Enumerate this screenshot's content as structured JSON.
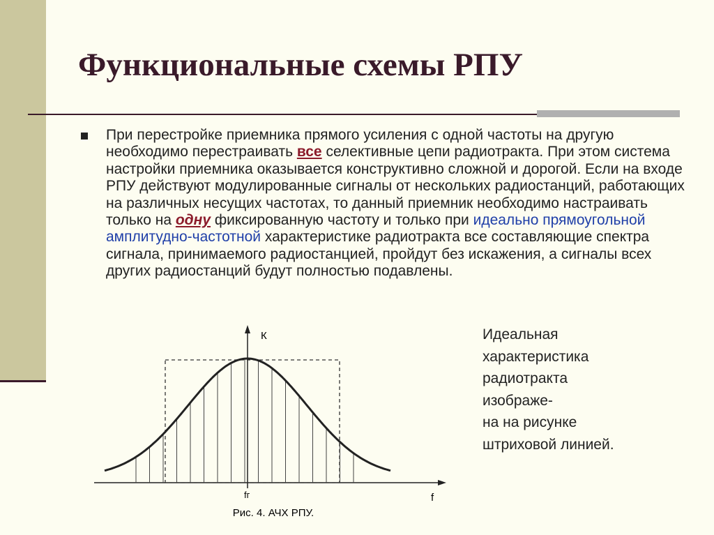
{
  "title": "Функциональные схемы РПУ",
  "bullet": {
    "parts": [
      "При перестройке приемника прямого усиления с одной частоты на другую необходимо перестраивать ",
      "все",
      " селективные цепи радиотракта. При этом система настройки приемника оказывается конструктивно сложной и дорогой. Если на входе РПУ действуют модулированные сигналы от нескольких радиостанций, работающих на различных несущих частотах, то данный приемник необходимо настраивать только на ",
      "одну",
      " фиксированную частоту и только при ",
      "идеально прямоугольной амплитудно-частотной",
      " характеристике радиотракта все составляющие спектра сигнала, принимаемого радиостанцией, пройдут без искажения, а сигналы всех других радиостанций будут полностью подавлены."
    ]
  },
  "figure": {
    "y_label": "К",
    "x_center_label": "fг",
    "x_label": "f",
    "caption": "Рис. 4. АЧХ РПУ."
  },
  "side_text": [
    "Идеальная",
    "характеристика",
    "радиотракта",
    "изображе-",
    "на на рисунке",
    "штриховой линией."
  ]
}
